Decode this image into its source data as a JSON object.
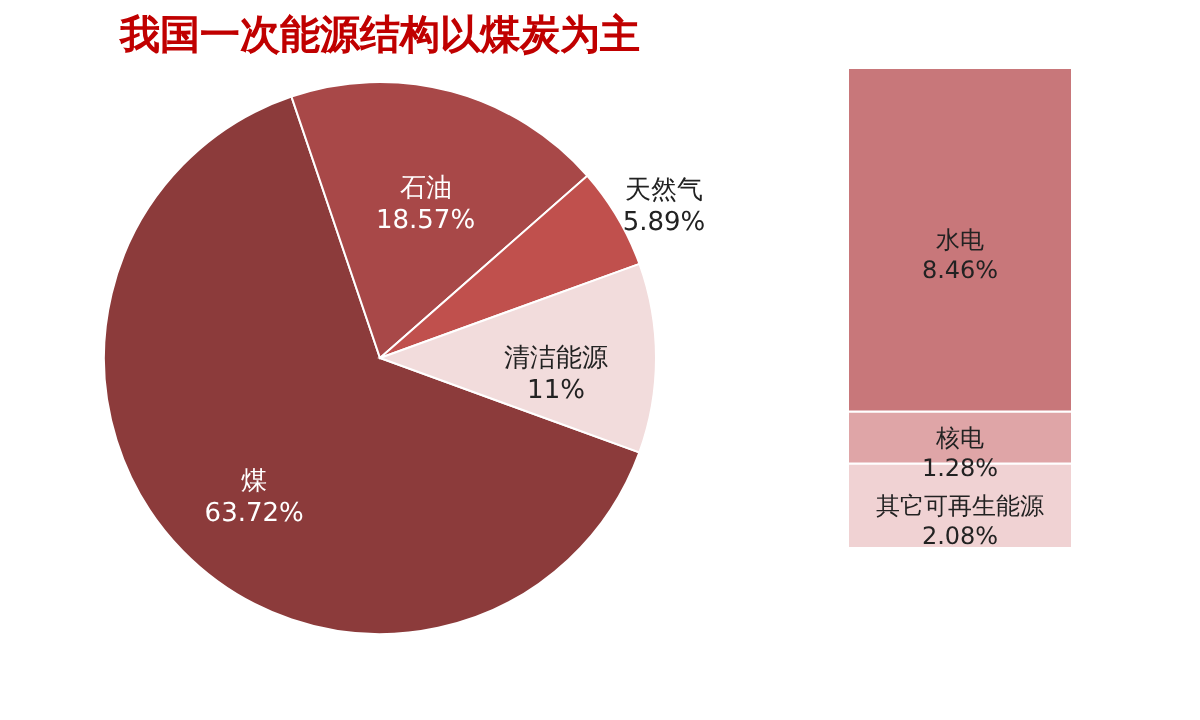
{
  "chart_data": [
    {
      "type": "pie",
      "title": "我国一次能源结构以煤炭为主",
      "categories": [
        "煤",
        "石油",
        "天然气",
        "清洁能源"
      ],
      "values": [
        63.72,
        18.57,
        5.89,
        11
      ],
      "value_labels": [
        "63.72%",
        "18.57%",
        "5.89%",
        "11%"
      ],
      "colors": [
        "#8c3b3b",
        "#a84848",
        "#c0504d",
        "#f2dcdc"
      ],
      "legend": false
    },
    {
      "type": "bar",
      "stacked": true,
      "categories": [
        null
      ],
      "legend": false,
      "series": [
        {
          "name": "其它可再生能源",
          "color": "#f0d2d3",
          "values": [
            2.08
          ],
          "value_labels": [
            "2.08%"
          ]
        },
        {
          "name": "核电",
          "color": "#dfa5a7",
          "values": [
            1.28
          ],
          "value_labels": [
            "1.28%"
          ]
        },
        {
          "name": "水电",
          "color": "#c8777a",
          "values": [
            8.46
          ],
          "value_labels": [
            "8.46%"
          ]
        }
      ]
    }
  ]
}
